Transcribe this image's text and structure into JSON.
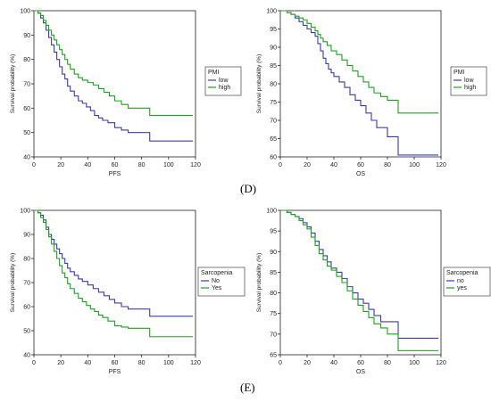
{
  "panel_labels": {
    "d": "(D)",
    "e": "(E)"
  },
  "chart_data": [
    {
      "type": "line",
      "step": true,
      "xlabel": "PFS",
      "ylabel": "Survival probability (%)",
      "xlim": [
        0,
        120
      ],
      "ylim": [
        40,
        100
      ],
      "xticks": [
        0,
        20,
        40,
        60,
        80,
        100,
        120
      ],
      "yticks": [
        40,
        50,
        60,
        70,
        80,
        90,
        100
      ],
      "legend": {
        "title": "PMI",
        "position": "right-outside"
      },
      "series": [
        {
          "name": "low",
          "color": "#3b3bb0",
          "x": [
            0,
            3,
            5,
            7,
            9,
            11,
            13,
            15,
            17,
            19,
            21,
            23,
            25,
            27,
            30,
            33,
            36,
            39,
            42,
            45,
            48,
            51,
            55,
            60,
            65,
            70,
            75,
            86,
            118
          ],
          "y": [
            100,
            99,
            97,
            95,
            92,
            89,
            86,
            83,
            80,
            77,
            74,
            72,
            69,
            67,
            65,
            63,
            62,
            60.5,
            59,
            57,
            56,
            55,
            54,
            52,
            51,
            50,
            50,
            46.5,
            46.5
          ]
        },
        {
          "name": "high",
          "color": "#1fa01f",
          "x": [
            0,
            3,
            5,
            7,
            9,
            11,
            13,
            15,
            17,
            19,
            21,
            23,
            25,
            27,
            30,
            33,
            36,
            40,
            44,
            48,
            52,
            56,
            60,
            65,
            70,
            75,
            86,
            118
          ],
          "y": [
            100,
            99,
            98,
            96,
            94,
            92,
            90,
            88,
            86,
            84,
            82,
            80,
            78,
            76,
            74,
            72.5,
            71.5,
            70.5,
            69.5,
            68,
            66.5,
            65,
            63,
            61.5,
            60,
            60,
            57,
            57
          ]
        }
      ]
    },
    {
      "type": "line",
      "step": true,
      "xlabel": "OS",
      "ylabel": "Survival probability (%)",
      "xlim": [
        0,
        120
      ],
      "ylim": [
        60,
        100
      ],
      "xticks": [
        0,
        20,
        40,
        60,
        80,
        100,
        120
      ],
      "yticks": [
        60,
        65,
        70,
        75,
        80,
        85,
        90,
        95,
        100
      ],
      "legend": {
        "title": "PMI",
        "position": "right-outside"
      },
      "series": [
        {
          "name": "low",
          "color": "#3b3bb0",
          "x": [
            0,
            5,
            8,
            11,
            14,
            17,
            20,
            23,
            26,
            28,
            30,
            32,
            34,
            36,
            38,
            40,
            44,
            48,
            52,
            56,
            60,
            64,
            68,
            72,
            80,
            88,
            118
          ],
          "y": [
            100,
            99.5,
            99,
            98,
            97,
            96,
            95,
            94,
            93,
            91,
            89,
            87,
            85.5,
            84,
            83,
            82,
            80.5,
            79,
            77,
            75.5,
            74,
            72,
            70,
            68,
            65.5,
            60.5,
            60.5
          ]
        },
        {
          "name": "high",
          "color": "#1fa01f",
          "x": [
            0,
            5,
            8,
            11,
            14,
            17,
            20,
            23,
            26,
            28,
            30,
            32,
            35,
            38,
            42,
            46,
            50,
            54,
            58,
            62,
            66,
            70,
            75,
            80,
            88,
            118
          ],
          "y": [
            100,
            99.5,
            99,
            98.5,
            98,
            97.5,
            96.5,
            95.5,
            94.5,
            93.5,
            92.5,
            91.5,
            90.5,
            89,
            88,
            86.5,
            85,
            83.5,
            82,
            80.5,
            79,
            77.5,
            76.5,
            75.5,
            72,
            72
          ]
        }
      ]
    },
    {
      "type": "line",
      "step": true,
      "xlabel": "PFS",
      "ylabel": "Survival probability (%)",
      "xlim": [
        0,
        120
      ],
      "ylim": [
        40,
        100
      ],
      "xticks": [
        0,
        20,
        40,
        60,
        80,
        100,
        120
      ],
      "yticks": [
        40,
        50,
        60,
        70,
        80,
        90,
        100
      ],
      "legend": {
        "title": "Sarcopenia",
        "position": "right-outside"
      },
      "series": [
        {
          "name": "No",
          "color": "#3b3bb0",
          "x": [
            0,
            3,
            5,
            7,
            9,
            11,
            13,
            15,
            17,
            19,
            21,
            23,
            25,
            27,
            30,
            33,
            36,
            40,
            44,
            48,
            52,
            56,
            60,
            65,
            70,
            75,
            86,
            118
          ],
          "y": [
            100,
            99,
            98,
            96,
            93,
            90,
            88,
            86,
            84,
            82,
            80,
            78,
            76,
            74.5,
            73,
            71.5,
            70.5,
            69,
            67.5,
            66,
            64.5,
            63,
            61.5,
            60,
            59,
            59,
            56,
            56
          ]
        },
        {
          "name": "Yes",
          "color": "#1fa01f",
          "x": [
            0,
            3,
            5,
            7,
            9,
            11,
            13,
            15,
            17,
            19,
            21,
            23,
            25,
            27,
            30,
            33,
            36,
            39,
            42,
            45,
            48,
            51,
            55,
            60,
            65,
            70,
            75,
            86,
            118
          ],
          "y": [
            100,
            99,
            97,
            95,
            92,
            89,
            86,
            83,
            80,
            77,
            74,
            72,
            69.5,
            67.5,
            65.5,
            63.5,
            62,
            60.5,
            59,
            58,
            56.5,
            55.5,
            54,
            52,
            51.5,
            51,
            51,
            47.5,
            47.5
          ]
        }
      ]
    },
    {
      "type": "line",
      "step": true,
      "xlabel": "OS",
      "ylabel": "Survival probability (%)",
      "xlim": [
        0,
        120
      ],
      "ylim": [
        65,
        100
      ],
      "xticks": [
        0,
        20,
        40,
        60,
        80,
        100,
        120
      ],
      "yticks": [
        65,
        70,
        75,
        80,
        85,
        90,
        95,
        100
      ],
      "legend": {
        "title": "Sarcopenia",
        "position": "right-outside"
      },
      "series": [
        {
          "name": "no",
          "color": "#3b3bb0",
          "x": [
            0,
            5,
            8,
            11,
            14,
            17,
            20,
            23,
            26,
            29,
            32,
            35,
            38,
            42,
            46,
            50,
            54,
            58,
            62,
            66,
            70,
            75,
            80,
            88,
            118
          ],
          "y": [
            100,
            99.5,
            99,
            98.5,
            98,
            97,
            96,
            94.5,
            92.5,
            90.5,
            89,
            87.5,
            86,
            85,
            83.5,
            81.5,
            80,
            78.5,
            77.5,
            76,
            74.5,
            73,
            73,
            69,
            69
          ]
        },
        {
          "name": "yes",
          "color": "#1fa01f",
          "x": [
            0,
            5,
            8,
            11,
            14,
            17,
            20,
            23,
            26,
            29,
            32,
            35,
            38,
            42,
            46,
            50,
            54,
            58,
            62,
            66,
            70,
            75,
            80,
            88,
            118
          ],
          "y": [
            100,
            99.5,
            99,
            98.5,
            97.5,
            96.5,
            95.5,
            93.5,
            91.5,
            89.5,
            88,
            86.5,
            85.5,
            84,
            82.5,
            80.5,
            78.5,
            77,
            75.5,
            74,
            72.5,
            71.5,
            70,
            66,
            66
          ]
        }
      ]
    }
  ]
}
